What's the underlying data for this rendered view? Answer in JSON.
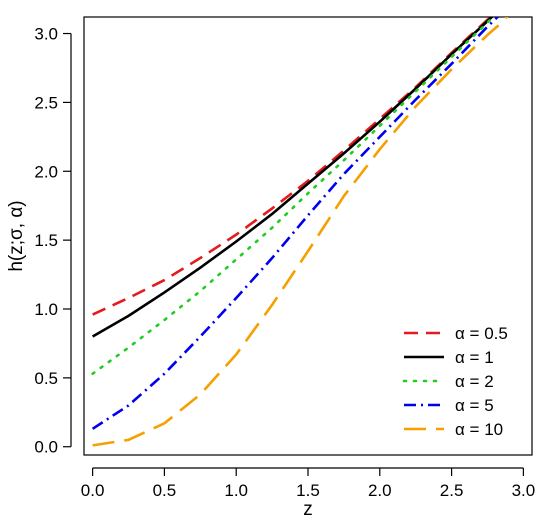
{
  "chart_data": {
    "type": "line",
    "title": "",
    "xlabel": "z",
    "ylabel": "h(z;σ, α)",
    "xlim": [
      -0.06,
      3.06
    ],
    "ylim": [
      -0.06,
      3.12
    ],
    "xticks": [
      0.0,
      0.5,
      1.0,
      1.5,
      2.0,
      2.5,
      3.0
    ],
    "xtick_labels": [
      "0.0",
      "0.5",
      "1.0",
      "1.5",
      "2.0",
      "2.5",
      "3.0"
    ],
    "yticks": [
      0.0,
      0.5,
      1.0,
      1.5,
      2.0,
      2.5,
      3.0
    ],
    "ytick_labels": [
      "0.0",
      "0.5",
      "1.0",
      "1.5",
      "2.0",
      "2.5",
      "3.0"
    ],
    "grid": false,
    "legend_position": "bottom-right",
    "series": [
      {
        "name": "α = 0.5",
        "color": "#e41a1c",
        "dash": "14,8",
        "x": [
          0,
          0.25,
          0.5,
          0.75,
          1.0,
          1.25,
          1.5,
          1.75,
          2.0,
          2.25,
          2.5,
          2.75,
          2.85
        ],
        "y": [
          0.96,
          1.08,
          1.21,
          1.37,
          1.54,
          1.73,
          1.93,
          2.15,
          2.38,
          2.61,
          2.86,
          3.1,
          3.18
        ]
      },
      {
        "name": "α = 1",
        "color": "#000000",
        "dash": "",
        "x": [
          0,
          0.25,
          0.5,
          0.75,
          1.0,
          1.25,
          1.5,
          1.75,
          2.0,
          2.25,
          2.5,
          2.75,
          2.85
        ],
        "y": [
          0.8,
          0.95,
          1.12,
          1.3,
          1.49,
          1.69,
          1.91,
          2.13,
          2.36,
          2.6,
          2.85,
          3.09,
          3.19
        ]
      },
      {
        "name": "α = 2",
        "color": "#22cc22",
        "dash": "2,8",
        "x": [
          0,
          0.25,
          0.5,
          0.75,
          1.0,
          1.25,
          1.5,
          1.75,
          2.0,
          2.25,
          2.5,
          2.75,
          2.85
        ],
        "y": [
          0.53,
          0.72,
          0.92,
          1.13,
          1.36,
          1.59,
          1.84,
          2.08,
          2.33,
          2.58,
          2.83,
          3.08,
          3.18
        ]
      },
      {
        "name": "α = 5",
        "color": "#0000ee",
        "dash": "12,5,2,5",
        "x": [
          0,
          0.25,
          0.5,
          0.75,
          1.0,
          1.25,
          1.5,
          1.75,
          2.0,
          2.25,
          2.5,
          2.75,
          2.85
        ],
        "y": [
          0.13,
          0.3,
          0.53,
          0.8,
          1.08,
          1.37,
          1.68,
          1.98,
          2.25,
          2.52,
          2.78,
          3.05,
          3.15
        ]
      },
      {
        "name": "α = 10",
        "color": "#f5a000",
        "dash": "22,10",
        "x": [
          0,
          0.25,
          0.5,
          0.75,
          1.0,
          1.25,
          1.5,
          1.75,
          2.0,
          2.25,
          2.5,
          2.75,
          2.85,
          2.9
        ],
        "y": [
          0.01,
          0.05,
          0.17,
          0.38,
          0.67,
          1.03,
          1.42,
          1.82,
          2.16,
          2.47,
          2.74,
          2.99,
          3.08,
          3.14
        ]
      }
    ]
  }
}
